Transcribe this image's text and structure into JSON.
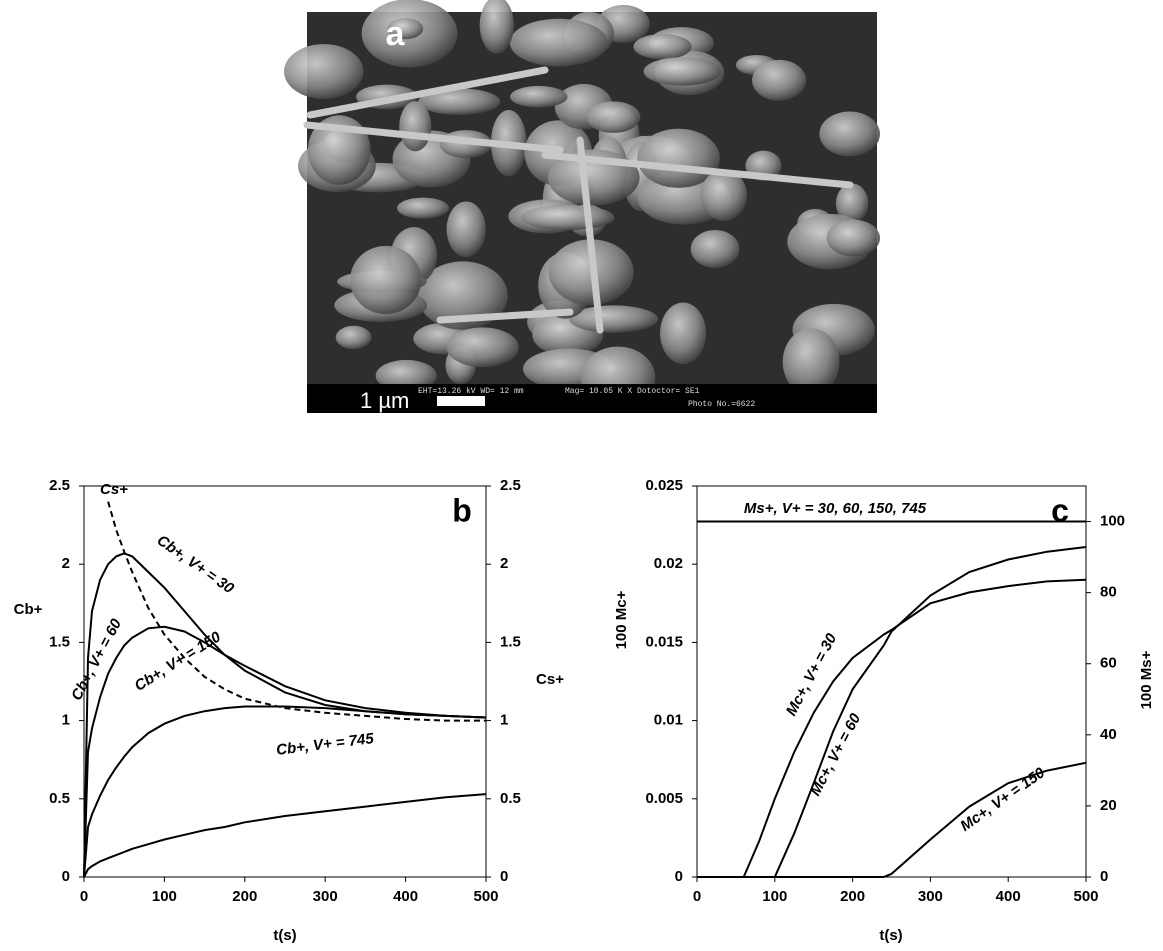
{
  "image": {
    "label": "a",
    "scale_bar": "1 µm",
    "info": [
      "EHT=13.26 kV  WD=  12 mm",
      "Mag= 10.05 K X  Dotoctor= SE1",
      "Photo No.=6622"
    ]
  },
  "chart_data": [
    {
      "type": "line",
      "panel": "b",
      "xlabel": "t(s)",
      "ylabel": "Cb+",
      "y2label": "Cs+",
      "x": [
        0,
        5,
        10,
        20,
        30,
        40,
        50,
        60,
        80,
        100,
        125,
        150,
        175,
        200,
        250,
        300,
        350,
        400,
        450,
        500
      ],
      "xlim": [
        0,
        500
      ],
      "xticks": [
        0,
        100,
        200,
        300,
        400,
        500
      ],
      "ylim": [
        0,
        2.5
      ],
      "yticks": [
        0,
        0.5,
        1,
        1.5,
        2,
        2.5
      ],
      "y2lim": [
        0,
        2.5
      ],
      "y2ticks": [
        0,
        0.5,
        1,
        1.5,
        2,
        2.5
      ],
      "series": [
        {
          "name": "Cb+, V+ = 30",
          "color": "#000000",
          "values": [
            0,
            1.4,
            1.7,
            1.9,
            2.0,
            2.05,
            2.07,
            2.05,
            1.95,
            1.85,
            1.7,
            1.55,
            1.42,
            1.32,
            1.18,
            1.1,
            1.06,
            1.04,
            1.03,
            1.02
          ]
        },
        {
          "name": "Cb+, V+ = 60",
          "color": "#000000",
          "values": [
            0,
            0.8,
            0.95,
            1.15,
            1.3,
            1.4,
            1.48,
            1.53,
            1.59,
            1.6,
            1.57,
            1.5,
            1.42,
            1.35,
            1.22,
            1.13,
            1.08,
            1.05,
            1.03,
            1.02
          ]
        },
        {
          "name": "Cb+, V+ = 150",
          "color": "#000000",
          "values": [
            0,
            0.32,
            0.4,
            0.52,
            0.62,
            0.7,
            0.77,
            0.83,
            0.92,
            0.98,
            1.03,
            1.06,
            1.08,
            1.09,
            1.09,
            1.08,
            1.06,
            1.04,
            1.03,
            1.02
          ]
        },
        {
          "name": "Cb+, V+ = 745",
          "color": "#000000",
          "values": [
            0,
            0.05,
            0.07,
            0.1,
            0.12,
            0.14,
            0.16,
            0.18,
            0.21,
            0.24,
            0.27,
            0.3,
            0.32,
            0.35,
            0.39,
            0.42,
            0.45,
            0.48,
            0.51,
            0.53
          ]
        },
        {
          "name": "Cs+",
          "color": "#000000",
          "style": "dashed",
          "axis": "y2",
          "values": [
            null,
            null,
            null,
            null,
            2.4,
            2.22,
            2.08,
            1.95,
            1.72,
            1.55,
            1.4,
            1.28,
            1.2,
            1.14,
            1.08,
            1.05,
            1.03,
            1.01,
            1.0,
            1.0
          ]
        }
      ]
    },
    {
      "type": "line",
      "panel": "c",
      "xlabel": "t(s)",
      "ylabel": "100 Mc+",
      "y2label": "100 Ms+",
      "x": [
        0,
        50,
        60,
        80,
        100,
        125,
        150,
        175,
        200,
        240,
        250,
        300,
        350,
        400,
        450,
        500
      ],
      "xlim": [
        0,
        500
      ],
      "xticks": [
        0,
        100,
        200,
        300,
        400,
        500
      ],
      "ylim": [
        0,
        0.025
      ],
      "yticks": [
        0,
        0.005,
        0.01,
        0.015,
        0.02,
        0.025
      ],
      "y2lim": [
        0,
        110
      ],
      "y2ticks": [
        0,
        20,
        40,
        60,
        80,
        100
      ],
      "series": [
        {
          "name": "Ms+, V+ = 30, 60, 150, 745",
          "color": "#000000",
          "axis": "y2",
          "values": [
            100,
            100,
            100,
            100,
            100,
            100,
            100,
            100,
            100,
            100,
            100,
            100,
            100,
            100,
            100,
            100
          ]
        },
        {
          "name": "Mc+, V+ = 30",
          "color": "#000000",
          "values": [
            0,
            0,
            0,
            0.0023,
            0.005,
            0.008,
            0.0105,
            0.0125,
            0.014,
            0.0155,
            0.0158,
            0.0175,
            0.0182,
            0.0186,
            0.0189,
            0.019
          ]
        },
        {
          "name": "Mc+, V+ = 60",
          "color": "#000000",
          "values": [
            0,
            0,
            0,
            0,
            0,
            0.0028,
            0.006,
            0.0093,
            0.012,
            0.0148,
            0.0157,
            0.018,
            0.0195,
            0.0203,
            0.0208,
            0.0211
          ]
        },
        {
          "name": "Mc+, V+ = 150",
          "color": "#000000",
          "values": [
            0,
            0,
            0,
            0,
            0,
            0,
            0,
            0,
            0,
            0,
            0.0002,
            0.0024,
            0.0045,
            0.006,
            0.0068,
            0.0073
          ]
        }
      ]
    }
  ]
}
